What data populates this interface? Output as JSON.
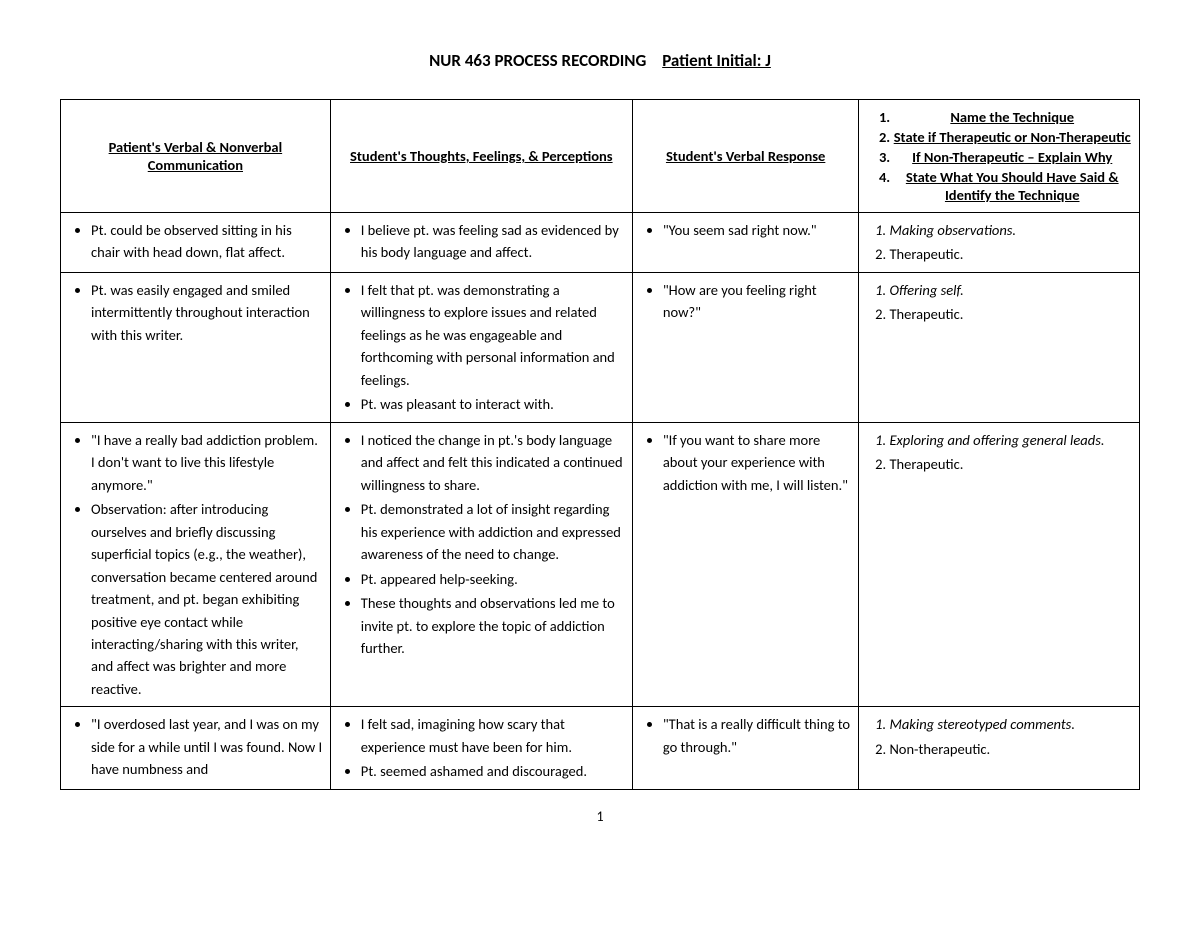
{
  "title": {
    "main": "NUR 463 PROCESS RECORDING",
    "patient_label": "Patient Initial: J"
  },
  "page_number": "1",
  "columns": {
    "c1": "Patient's Verbal & Nonverbal Communication",
    "c2": "Student's Thoughts, Feelings, & Perceptions",
    "c3": "Student's Verbal Response",
    "c4_items": [
      "Name the Technique",
      "State if Therapeutic or Non-Therapeutic",
      "If Non-Therapeutic – Explain Why",
      "State What You Should Have Said & Identify the Technique"
    ]
  },
  "rows": [
    {
      "c1": [
        "Pt. could be observed sitting in his chair with head down, flat affect."
      ],
      "c2": [
        "I believe pt. was feeling sad as evidenced by his body language and affect."
      ],
      "c3": [
        "\"You seem sad right now.\""
      ],
      "c4": [
        {
          "text": "Making observations.",
          "italic": true
        },
        {
          "text": "Therapeutic.",
          "italic": false
        }
      ]
    },
    {
      "c1": [
        "Pt. was easily engaged and smiled intermittently throughout interaction with this writer."
      ],
      "c2": [
        "I felt that pt. was demonstrating a willingness to explore issues and related feelings as he was engageable and forthcoming with personal information and feelings.",
        "Pt. was pleasant to interact with."
      ],
      "c3": [
        "\"How are you feeling right now?\""
      ],
      "c4": [
        {
          "text": "Offering self.",
          "italic": true
        },
        {
          "text": "Therapeutic.",
          "italic": false
        }
      ]
    },
    {
      "c1": [
        "\"I have a really bad addiction problem. I don't want to live this lifestyle anymore.\"",
        "Observation: after introducing ourselves and briefly discussing superficial topics (e.g., the weather), conversation became centered around treatment, and pt. began exhibiting positive eye contact while interacting/sharing with this writer, and affect was brighter and more reactive."
      ],
      "c2": [
        "I noticed the change in pt.'s body language and affect and felt this indicated a continued willingness to share.",
        "Pt. demonstrated a lot of insight regarding his experience with addiction and expressed awareness of the need to change.",
        "Pt. appeared help-seeking.",
        "These thoughts and observations led me to invite pt. to explore the topic of addiction further."
      ],
      "c3": [
        "\"If you want to share more about your experience with addiction with me, I will listen.\""
      ],
      "c4": [
        {
          "text": "Exploring and offering general leads.",
          "italic": true
        },
        {
          "text": "Therapeutic.",
          "italic": false
        }
      ]
    },
    {
      "c1": [
        "\"I overdosed last year, and I was on my side for a while until I was found. Now I have numbness and"
      ],
      "c2": [
        "I felt sad, imagining how scary that experience must have been for him.",
        "Pt. seemed ashamed and discouraged."
      ],
      "c3": [
        "\"That is a really difficult thing to go through.\""
      ],
      "c4": [
        {
          "text": "Making stereotyped comments.",
          "italic": true
        },
        {
          "text": "Non-therapeutic.",
          "italic": false
        }
      ]
    }
  ]
}
